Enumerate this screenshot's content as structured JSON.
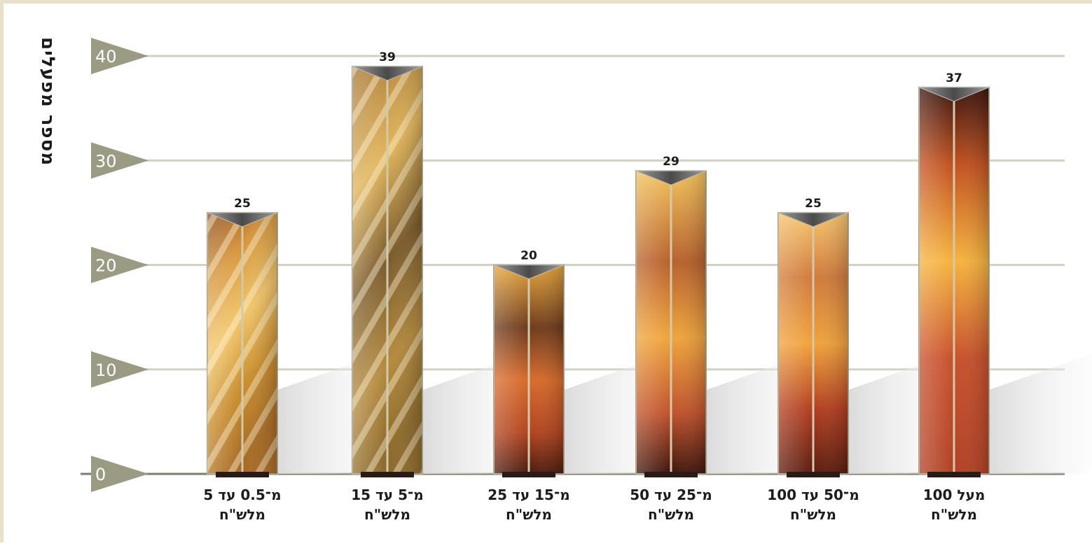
{
  "chart_data": {
    "type": "bar",
    "ylabel": "מספר מפעלים",
    "ylim": [
      0,
      40
    ],
    "yticks": [
      0,
      10,
      20,
      30,
      40
    ],
    "grid": true,
    "categories": [
      "מ־0.5 עד 5\nמלש\"ח",
      "מ־5 עד 15\nמלש\"ח",
      "מ־15 עד 25\nמלש\"ח",
      "מ־25 עד 50\nמלש\"ח",
      "מ־50 עד 100\nמלש\"ח",
      "מעל 100\nמלש\"ח"
    ],
    "values": [
      25,
      39,
      20,
      29,
      25,
      37
    ],
    "data_labels": [
      "25",
      "39",
      "20",
      "29",
      "25",
      "37"
    ]
  },
  "colors": {
    "tick_marker": "#9b9a82",
    "gridline": "#d2d1c4",
    "baseline": "#7e7d6c",
    "bar_top": "#6d6d6d",
    "bar_warm_light": "#f4b93a",
    "bar_warm_dark": "#8a2e12"
  }
}
